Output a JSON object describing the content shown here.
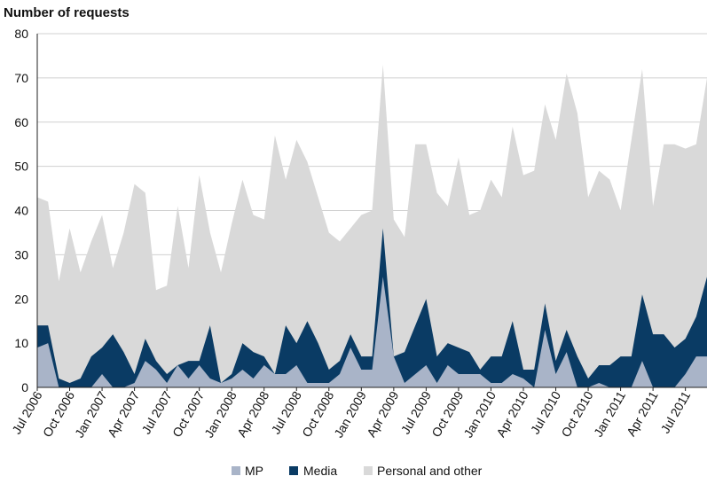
{
  "chart_data": {
    "type": "area",
    "stacked": true,
    "title": "",
    "ylabel": "Number of requests",
    "xlabel": "",
    "ylim": [
      0,
      80
    ],
    "yticks": [
      0,
      10,
      20,
      30,
      40,
      50,
      60,
      70,
      80
    ],
    "grid": true,
    "legend_position": "bottom",
    "x_tick_labels": [
      {
        "index": 0,
        "label": "Jul 2006"
      },
      {
        "index": 3,
        "label": "Oct 2006"
      },
      {
        "index": 6,
        "label": "Jan 2007"
      },
      {
        "index": 9,
        "label": "Apr 2007"
      },
      {
        "index": 12,
        "label": "Jul 2007"
      },
      {
        "index": 15,
        "label": "Oct 2007"
      },
      {
        "index": 18,
        "label": "Jan 2008"
      },
      {
        "index": 21,
        "label": "Apr 2008"
      },
      {
        "index": 24,
        "label": "Jul 2008"
      },
      {
        "index": 27,
        "label": "Oct 2008"
      },
      {
        "index": 30,
        "label": "Jan 2009"
      },
      {
        "index": 33,
        "label": "Apr 2009"
      },
      {
        "index": 36,
        "label": "Jul 2009"
      },
      {
        "index": 39,
        "label": "Oct 2009"
      },
      {
        "index": 42,
        "label": "Jan 2010"
      },
      {
        "index": 45,
        "label": "Apr 2010"
      },
      {
        "index": 48,
        "label": "Jul 2010"
      },
      {
        "index": 51,
        "label": "Oct 2010"
      },
      {
        "index": 54,
        "label": "Jan 2011"
      },
      {
        "index": 57,
        "label": "Apr 2011"
      },
      {
        "index": 60,
        "label": "Jul 2011"
      }
    ],
    "num_points": 63,
    "series": [
      {
        "name": "MP",
        "color": "#a9b4c8",
        "values": [
          9,
          10,
          0,
          0,
          0,
          0,
          3,
          0,
          0,
          1,
          6,
          4,
          1,
          5,
          2,
          5,
          2,
          1,
          2,
          4,
          2,
          5,
          3,
          3,
          5,
          1,
          1,
          1,
          3,
          9,
          4,
          4,
          25,
          7,
          1,
          3,
          5,
          1,
          5,
          3,
          3,
          3,
          1,
          1,
          3,
          2,
          0,
          13,
          3,
          8,
          0,
          0,
          1,
          0,
          0,
          0,
          6,
          0,
          0,
          0,
          3,
          7,
          7
        ]
      },
      {
        "name": "Media",
        "color": "#0a3b64",
        "values": [
          14,
          14,
          2,
          1,
          2,
          7,
          9,
          12,
          8,
          3,
          11,
          6,
          3,
          5,
          6,
          6,
          14,
          1,
          3,
          10,
          8,
          7,
          3,
          14,
          10,
          15,
          10,
          4,
          6,
          12,
          7,
          7,
          36,
          7,
          8,
          14,
          20,
          7,
          10,
          9,
          8,
          4,
          7,
          7,
          15,
          4,
          4,
          19,
          6,
          13,
          7,
          2,
          5,
          5,
          7,
          7,
          21,
          12,
          12,
          9,
          11,
          16,
          25
        ]
      },
      {
        "name": "Personal and other",
        "color": "#d9d9d9",
        "values": [
          43,
          42,
          24,
          36,
          26,
          33,
          39,
          27,
          35,
          46,
          44,
          22,
          23,
          41,
          27,
          48,
          35,
          26,
          37,
          47,
          39,
          38,
          57,
          47,
          56,
          51,
          43,
          35,
          33,
          36,
          39,
          40,
          73,
          38,
          34,
          55,
          55,
          44,
          41,
          52,
          39,
          40,
          47,
          43,
          59,
          48,
          49,
          64,
          56,
          71,
          62,
          43,
          49,
          47,
          40,
          56,
          72,
          41,
          55,
          55,
          54,
          55,
          70
        ]
      }
    ]
  }
}
